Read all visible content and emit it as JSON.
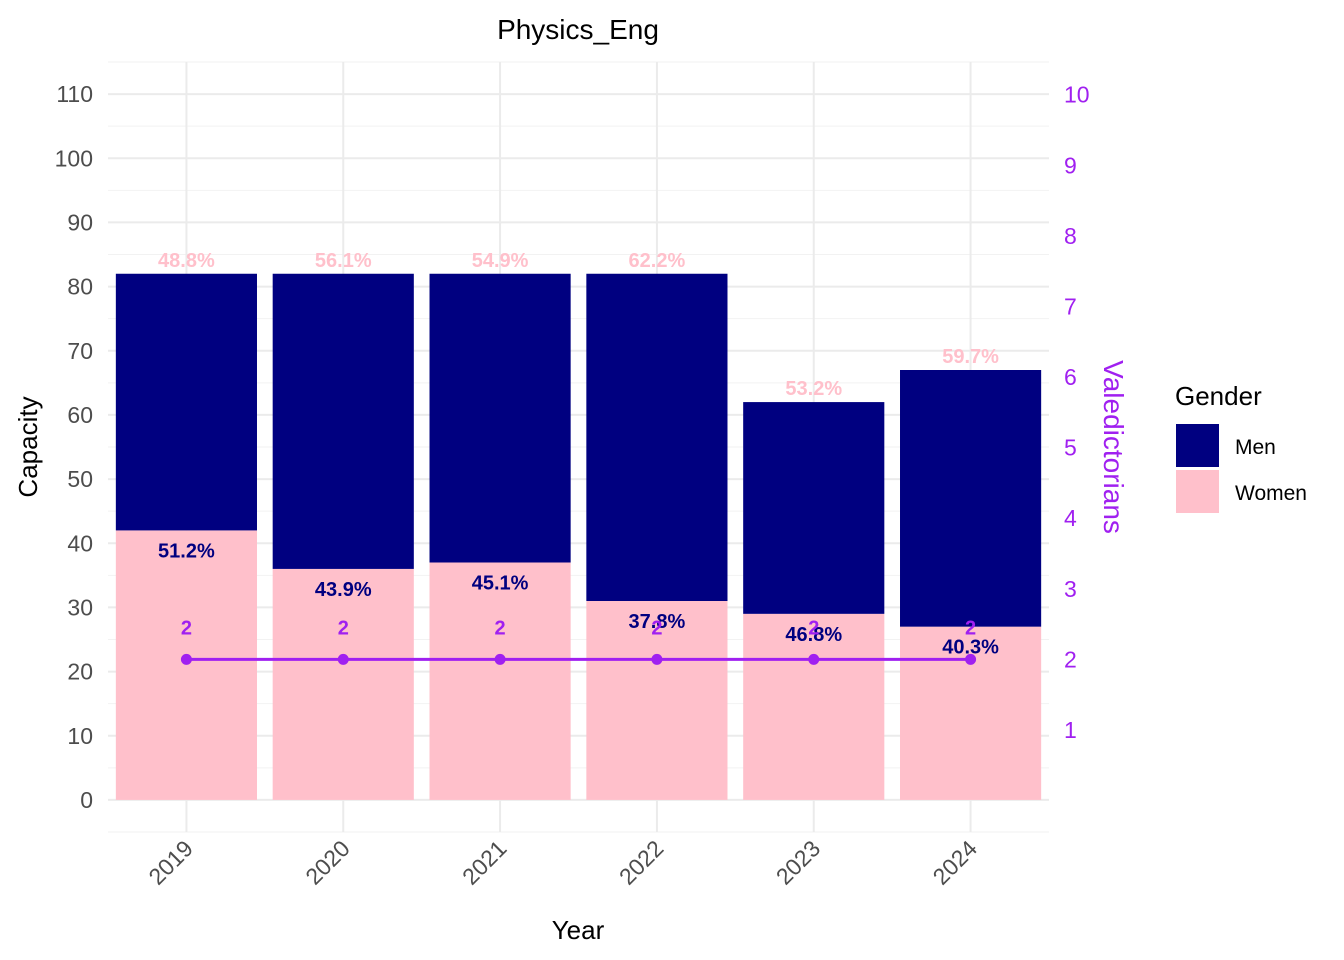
{
  "chart_data": {
    "type": "bar",
    "title": "Physics_Eng",
    "xlabel": "Year",
    "ylabel": "Capacity",
    "y2label": "Valedictorians",
    "categories": [
      "2019",
      "2020",
      "2021",
      "2022",
      "2023",
      "2024"
    ],
    "stacked": true,
    "ylim": [
      -5,
      115
    ],
    "yticks": [
      0,
      10,
      20,
      30,
      40,
      50,
      60,
      70,
      80,
      90,
      100,
      110
    ],
    "y2ticks": [
      1,
      2,
      3,
      4,
      5,
      6,
      7,
      8,
      9,
      10
    ],
    "series": [
      {
        "name": "Women",
        "color": "#ffc0cb",
        "values": [
          42,
          36,
          37,
          31,
          29,
          27
        ],
        "labels": [
          "51.2%",
          "43.9%",
          "45.1%",
          "37.8%",
          "46.8%",
          "40.3%"
        ],
        "label_color": "#000080"
      },
      {
        "name": "Men",
        "color": "#000080",
        "values": [
          40,
          46,
          45,
          51,
          33,
          40
        ],
        "labels": [
          "48.8%",
          "56.1%",
          "54.9%",
          "62.2%",
          "53.2%",
          "59.7%"
        ],
        "label_color": "#ffc0cb"
      }
    ],
    "line_series": {
      "name": "Valedictorians",
      "axis": "right",
      "color": "#a020f0",
      "values": [
        2,
        2,
        2,
        2,
        2,
        2
      ],
      "labels": [
        "2",
        "2",
        "2",
        "2",
        "2",
        "2"
      ]
    },
    "legend": {
      "title": "Gender",
      "position": "right",
      "entries": [
        {
          "label": "Men",
          "color": "#000080"
        },
        {
          "label": "Women",
          "color": "#ffc0cb"
        }
      ]
    },
    "grid": true
  }
}
